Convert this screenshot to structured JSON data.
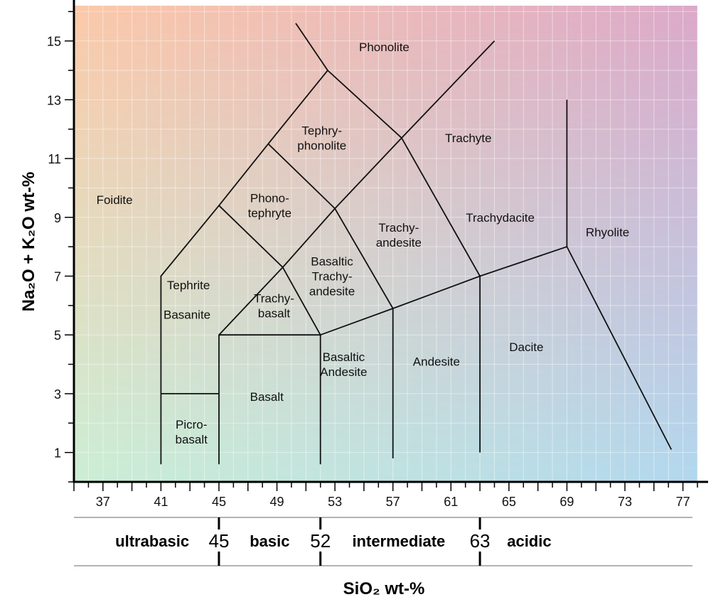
{
  "chart_data": {
    "type": "line",
    "xlabel": "SiO₂ wt-%",
    "ylabel": "Na₂O + K₂O wt-%",
    "xlim": [
      35,
      78
    ],
    "ylim": [
      0,
      16.2
    ],
    "x_ticks": [
      37,
      41,
      45,
      49,
      53,
      57,
      61,
      65,
      69,
      73,
      77
    ],
    "y_ticks": [
      1,
      3,
      5,
      7,
      9,
      11,
      13,
      15
    ],
    "grid": true,
    "background_gradient": {
      "top_left": "#fcc8a8",
      "top_right": "#dca8c8",
      "bottom_left": "#c0f8e0",
      "bottom_right": "#a8e4f8"
    },
    "boundaries": [
      {
        "points": [
          [
            41,
            0.6
          ],
          [
            41,
            7
          ],
          [
            45,
            9.4
          ],
          [
            48.4,
            11.5
          ],
          [
            52.5,
            14
          ],
          [
            57.6,
            11.7
          ],
          [
            63,
            7
          ],
          [
            69,
            8
          ],
          [
            69,
            13
          ]
        ]
      },
      {
        "points": [
          [
            45,
            0.6
          ],
          [
            45,
            5
          ],
          [
            49.4,
            7.3
          ],
          [
            53,
            9.3
          ],
          [
            57.6,
            11.7
          ],
          [
            64,
            15
          ]
        ]
      },
      {
        "points": [
          [
            52,
            0.6
          ],
          [
            52,
            5
          ],
          [
            57,
            5.9
          ],
          [
            63,
            7
          ]
        ]
      },
      {
        "points": [
          [
            57,
            0.8
          ],
          [
            57,
            5.9
          ],
          [
            53,
            9.3
          ],
          [
            48.4,
            11.5
          ]
        ]
      },
      {
        "points": [
          [
            63,
            1
          ],
          [
            63,
            7
          ]
        ]
      },
      {
        "points": [
          [
            41,
            3
          ],
          [
            45,
            3
          ]
        ]
      },
      {
        "points": [
          [
            45,
            5
          ],
          [
            52,
            5
          ]
        ]
      },
      {
        "points": [
          [
            45,
            9.4
          ],
          [
            49.4,
            7.3
          ],
          [
            52,
            5
          ]
        ]
      },
      {
        "points": [
          [
            52.5,
            14
          ],
          [
            50.3,
            15.6
          ]
        ]
      },
      {
        "points": [
          [
            69,
            8
          ],
          [
            76.2,
            1.1
          ]
        ]
      }
    ],
    "fields": [
      {
        "lines": [
          "Phonolite"
        ],
        "x": 56.4,
        "y": 14.8
      },
      {
        "lines": [
          "Tephry-",
          "phonolite"
        ],
        "x": 52.1,
        "y": 11.7
      },
      {
        "lines": [
          "Trachyte"
        ],
        "x": 62.2,
        "y": 11.7
      },
      {
        "lines": [
          "Foidite"
        ],
        "x": 37.8,
        "y": 9.6
      },
      {
        "lines": [
          "Phono-",
          "tephryte"
        ],
        "x": 48.5,
        "y": 9.4
      },
      {
        "lines": [
          "Trachy-",
          "andesite"
        ],
        "x": 57.4,
        "y": 8.4
      },
      {
        "lines": [
          "Trachydacite"
        ],
        "x": 64.4,
        "y": 9.0
      },
      {
        "lines": [
          "Rhyolite"
        ],
        "x": 71.8,
        "y": 8.5
      },
      {
        "lines": [
          "Tephrite"
        ],
        "x": 42.9,
        "y": 6.7
      },
      {
        "lines": [
          "Basaltic",
          "Trachy-",
          "andesite"
        ],
        "x": 52.8,
        "y": 7.0
      },
      {
        "lines": [
          "Basanite"
        ],
        "x": 42.8,
        "y": 5.7
      },
      {
        "lines": [
          "Trachy-",
          "basalt"
        ],
        "x": 48.8,
        "y": 6.0
      },
      {
        "lines": [
          "Basalt"
        ],
        "x": 48.3,
        "y": 2.9
      },
      {
        "lines": [
          "Basaltic",
          "Andesite"
        ],
        "x": 53.6,
        "y": 4.0
      },
      {
        "lines": [
          "Andesite"
        ],
        "x": 60.0,
        "y": 4.1
      },
      {
        "lines": [
          "Dacite"
        ],
        "x": 66.2,
        "y": 4.6
      },
      {
        "lines": [
          "Picro-",
          "basalt"
        ],
        "x": 43.1,
        "y": 1.7
      }
    ],
    "classification": {
      "divisions": [
        45,
        52,
        63
      ],
      "classes": [
        {
          "name": "ultrabasic",
          "center": 40.4
        },
        {
          "name": "basic",
          "center": 48.5
        },
        {
          "name": "intermediate",
          "center": 57.4
        },
        {
          "name": "acidic",
          "center": 66.4
        }
      ]
    }
  }
}
